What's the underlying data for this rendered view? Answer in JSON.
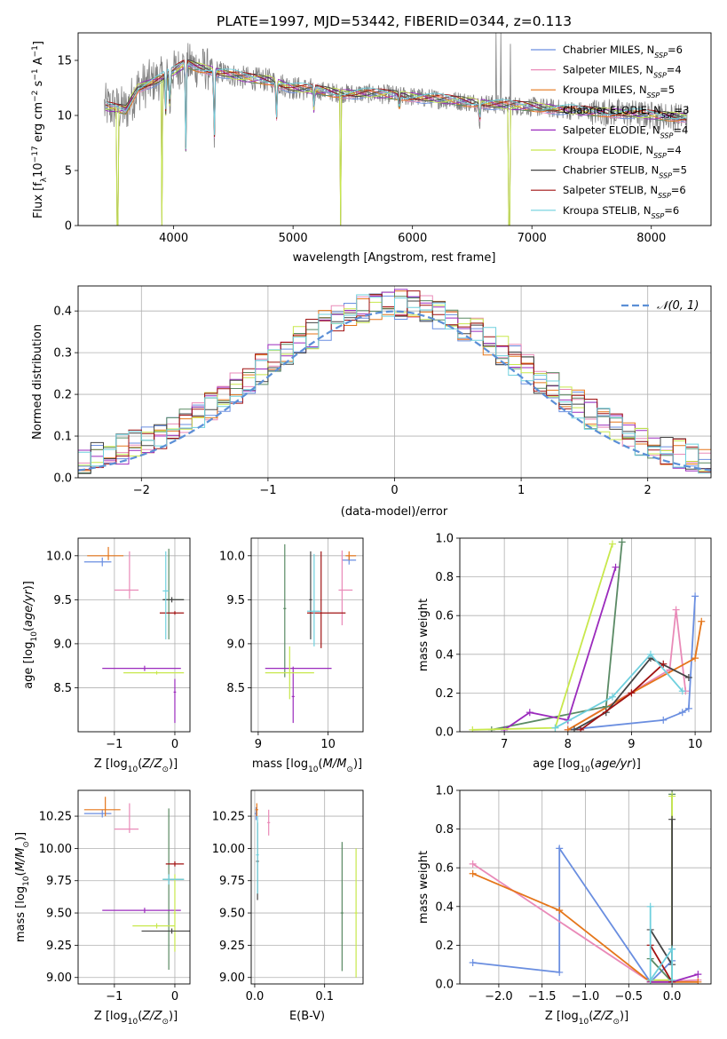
{
  "colors": {
    "series": [
      "#6a8ee0",
      "#e98ab8",
      "#e5761a",
      "#5a8a64",
      "#9b2bbd",
      "#c8e84c",
      "#444444",
      "#a01212",
      "#6fd0de"
    ],
    "grid": "#b0b0b0",
    "data_line": "#808080",
    "gaussian": "#5b8fd6"
  },
  "chart_data": [
    {
      "id": "spectrum",
      "type": "line",
      "title": "PLATE=1997, MJD=53442, FIBERID=0344, z=0.113",
      "xlabel": "wavelength [Angstrom, rest frame]",
      "ylabel": "Flux [fλ10⁻¹⁷ erg cm⁻² s⁻¹ A⁻¹]",
      "xlim": [
        3200,
        8500
      ],
      "ylim": [
        0,
        17.5
      ],
      "xticks": [
        4000,
        5000,
        6000,
        7000,
        8000
      ],
      "yticks": [
        0,
        5,
        10,
        15
      ],
      "grid": false,
      "legend_position": "top-right",
      "legend": [
        "Chabrier MILES, N_SSP=6",
        "Salpeter MILES, N_SSP=4",
        "Kroupa MILES, N_SSP=5",
        "Chabrier ELODIE, N_SSP=3",
        "Salpeter ELODIE, N_SSP=4",
        "Kroupa ELODIE, N_SSP=4",
        "Chabrier STELIB, N_SSP=5",
        "Salpeter STELIB, N_SSP=6",
        "Kroupa STELIB, N_SSP=6"
      ],
      "data_range": [
        3420,
        8310
      ],
      "continuum": [
        [
          3420,
          10.8
        ],
        [
          3600,
          10.5
        ],
        [
          3700,
          12.5
        ],
        [
          3900,
          13.4
        ],
        [
          4000,
          14.0
        ],
        [
          4100,
          14.7
        ],
        [
          4200,
          14.4
        ],
        [
          4400,
          13.9
        ],
        [
          4600,
          13.4
        ],
        [
          4800,
          13.2
        ],
        [
          5000,
          12.5
        ],
        [
          5200,
          12.3
        ],
        [
          5400,
          12.0
        ],
        [
          5600,
          12.0
        ],
        [
          5800,
          11.9
        ],
        [
          6000,
          11.7
        ],
        [
          6200,
          11.5
        ],
        [
          6400,
          11.3
        ],
        [
          6600,
          11.1
        ],
        [
          6800,
          10.9
        ],
        [
          7000,
          10.8
        ],
        [
          7200,
          10.6
        ],
        [
          7400,
          10.4
        ],
        [
          7600,
          10.3
        ],
        [
          7800,
          10.2
        ],
        [
          8000,
          10.0
        ],
        [
          8200,
          9.9
        ],
        [
          8310,
          9.8
        ]
      ],
      "absorption": [
        [
          3934,
          10.2
        ],
        [
          3969,
          10.3
        ],
        [
          4102,
          6.9
        ],
        [
          4340,
          7.5
        ],
        [
          4861,
          9.8
        ],
        [
          5175,
          10.5
        ],
        [
          5890,
          10.6
        ],
        [
          6563,
          9.5
        ]
      ],
      "drops_to_zero": [
        3530,
        3905,
        5395,
        6810
      ],
      "spikes": [
        [
          6700,
          17.5
        ],
        [
          6740,
          17.5
        ],
        [
          6820,
          16.5
        ]
      ]
    },
    {
      "id": "residuals",
      "type": "histogram",
      "xlabel": "(data-model)/error",
      "ylabel": "Normed distribution",
      "xlim": [
        -2.5,
        2.5
      ],
      "ylim": [
        0,
        0.46
      ],
      "xticks": [
        -2,
        -1,
        0,
        1,
        2
      ],
      "yticks": [
        0.0,
        0.1,
        0.2,
        0.3,
        0.4
      ],
      "grid": true,
      "legend_position": "top-right",
      "legend": [
        "𝒩(0, 1)"
      ],
      "bins": 50
    },
    {
      "id": "age-vs-Z",
      "type": "errorbar",
      "xlabel": "Z [log10(Z/Z⊙)]",
      "ylabel": "age  [log10(age/yr)]",
      "xlim": [
        -1.6,
        0.25
      ],
      "ylim": [
        8.0,
        10.2
      ],
      "xticks": [
        -1,
        0
      ],
      "yticks": [
        8.5,
        9.0,
        9.5,
        10.0
      ],
      "grid": true,
      "points": [
        {
          "s": 0,
          "x": -1.2,
          "y": 9.93,
          "xerr": [
            0.3,
            0.15
          ],
          "yerr": [
            0.05,
            0.05
          ]
        },
        {
          "s": 1,
          "x": -0.75,
          "y": 9.61,
          "xerr": [
            0.25,
            0.15
          ],
          "yerr": [
            0.1,
            0.44
          ]
        },
        {
          "s": 2,
          "x": -1.1,
          "y": 10.0,
          "xerr": [
            0.35,
            0.25
          ],
          "yerr": [
            0.05,
            0.1
          ]
        },
        {
          "s": 3,
          "x": -0.1,
          "y": 9.5,
          "xerr": [
            0.1,
            0.25
          ],
          "yerr": [
            0.45,
            0.58
          ]
        },
        {
          "s": 4,
          "x": -0.5,
          "y": 8.72,
          "xerr": [
            0.7,
            0.6
          ],
          "yerr": [
            0.03,
            0.03
          ]
        },
        {
          "s": 4,
          "x": 0.0,
          "y": 8.45,
          "xerr": [
            0.02,
            0.02
          ],
          "yerr": [
            0.35,
            0.15
          ]
        },
        {
          "s": 5,
          "x": -0.3,
          "y": 8.67,
          "xerr": [
            0.55,
            0.45
          ],
          "yerr": [
            0.02,
            0.02
          ]
        },
        {
          "s": 6,
          "x": -0.05,
          "y": 9.5,
          "xerr": [
            0.15,
            0.2
          ],
          "yerr": [
            0.03,
            0.03
          ]
        },
        {
          "s": 7,
          "x": 0.0,
          "y": 9.35,
          "xerr": [
            0.25,
            0.15
          ],
          "yerr": [
            0.02,
            0.02
          ]
        },
        {
          "s": 8,
          "x": -0.15,
          "y": 9.6,
          "xerr": [
            0.05,
            0.05
          ],
          "yerr": [
            0.55,
            0.45
          ]
        }
      ]
    },
    {
      "id": "age-vs-mass",
      "type": "errorbar",
      "xlabel": "mass [log10(M/M⊙)]",
      "ylabel": "",
      "xlim": [
        8.9,
        10.5
      ],
      "ylim": [
        8.0,
        10.2
      ],
      "xticks": [
        9,
        10
      ],
      "yticks": [
        8.5,
        9.0,
        9.5,
        10.0
      ],
      "grid": true,
      "points": [
        {
          "s": 0,
          "x": 10.3,
          "y": 9.95,
          "xerr": [
            0.1,
            0.1
          ],
          "yerr": [
            0.05,
            0.05
          ]
        },
        {
          "s": 1,
          "x": 10.2,
          "y": 9.61,
          "xerr": [
            0.05,
            0.15
          ],
          "yerr": [
            0.4,
            0.45
          ]
        },
        {
          "s": 2,
          "x": 10.3,
          "y": 10.0,
          "xerr": [
            0.05,
            0.1
          ],
          "yerr": [
            0.05,
            0.05
          ]
        },
        {
          "s": 3,
          "x": 9.38,
          "y": 9.4,
          "xerr": [
            0.02,
            0.02
          ],
          "yerr": [
            0.78,
            0.73
          ]
        },
        {
          "s": 4,
          "x": 9.5,
          "y": 8.72,
          "xerr": [
            0.4,
            0.55
          ],
          "yerr": [
            0.02,
            0.02
          ]
        },
        {
          "s": 4,
          "x": 9.5,
          "y": 8.4,
          "xerr": [
            0.02,
            0.02
          ],
          "yerr": [
            0.3,
            0.3
          ]
        },
        {
          "s": 5,
          "x": 9.45,
          "y": 8.67,
          "xerr": [
            0.35,
            0.35
          ],
          "yerr": [
            0.3,
            0.3
          ]
        },
        {
          "s": 6,
          "x": 9.75,
          "y": 9.5,
          "xerr": [
            0.02,
            0.02
          ],
          "yerr": [
            0.45,
            0.55
          ]
        },
        {
          "s": 7,
          "x": 9.9,
          "y": 9.35,
          "xerr": [
            0.2,
            0.35
          ],
          "yerr": [
            0.4,
            0.7
          ]
        },
        {
          "s": 8,
          "x": 9.8,
          "y": 9.37,
          "xerr": [
            0.1,
            0.1
          ],
          "yerr": [
            0.4,
            0.65
          ]
        }
      ]
    },
    {
      "id": "weight-vs-age",
      "type": "line",
      "xlabel": "age  [log10(age/yr)]",
      "ylabel": "mass weight",
      "xlim": [
        6.3,
        10.25
      ],
      "ylim": [
        0.0,
        1.0
      ],
      "xticks": [
        7,
        8,
        9,
        10
      ],
      "yticks": [
        0.0,
        0.2,
        0.4,
        0.6,
        0.8,
        1.0
      ],
      "grid": true,
      "series": [
        {
          "s": 0,
          "x": [
            8.0,
            9.5,
            9.8,
            9.9,
            10.0
          ],
          "y": [
            0.01,
            0.06,
            0.1,
            0.12,
            0.7
          ]
        },
        {
          "s": 1,
          "x": [
            8.0,
            9.6,
            9.7,
            9.85
          ],
          "y": [
            0.01,
            0.32,
            0.63,
            0.21
          ]
        },
        {
          "s": 2,
          "x": [
            8.0,
            9.0,
            10.0,
            10.1
          ],
          "y": [
            0.01,
            0.2,
            0.38,
            0.57
          ]
        },
        {
          "s": 3,
          "x": [
            6.8,
            8.6,
            8.85
          ],
          "y": [
            0.01,
            0.13,
            0.98
          ]
        },
        {
          "s": 4,
          "x": [
            7.0,
            7.4,
            8.0,
            8.75
          ],
          "y": [
            0.01,
            0.1,
            0.06,
            0.85
          ]
        },
        {
          "s": 5,
          "x": [
            6.5,
            7.8,
            8.7
          ],
          "y": [
            0.01,
            0.02,
            0.97
          ]
        },
        {
          "s": 6,
          "x": [
            8.1,
            8.6,
            9.3,
            9.9
          ],
          "y": [
            0.01,
            0.1,
            0.38,
            0.28
          ]
        },
        {
          "s": 7,
          "x": [
            8.2,
            9.0,
            9.5
          ],
          "y": [
            0.01,
            0.2,
            0.35
          ]
        },
        {
          "s": 8,
          "x": [
            7.8,
            8.7,
            9.3,
            9.8
          ],
          "y": [
            0.02,
            0.18,
            0.4,
            0.21
          ]
        }
      ]
    },
    {
      "id": "mass-vs-Z",
      "type": "errorbar",
      "xlabel": "Z [log10(Z/Z⊙)]",
      "ylabel": "mass [log10(M/M⊙)]",
      "xlim": [
        -1.6,
        0.25
      ],
      "ylim": [
        8.95,
        10.45
      ],
      "xticks": [
        -1,
        0
      ],
      "yticks": [
        9.0,
        9.25,
        9.5,
        9.75,
        10.0,
        10.25
      ],
      "grid": true,
      "points": [
        {
          "s": 0,
          "x": -1.2,
          "y": 10.27,
          "xerr": [
            0.3,
            0.15
          ],
          "yerr": [
            0.03,
            0.03
          ]
        },
        {
          "s": 1,
          "x": -0.75,
          "y": 10.15,
          "xerr": [
            0.25,
            0.15
          ],
          "yerr": [
            0.03,
            0.2
          ]
        },
        {
          "s": 2,
          "x": -1.15,
          "y": 10.3,
          "xerr": [
            0.35,
            0.25
          ],
          "yerr": [
            0.05,
            0.1
          ]
        },
        {
          "s": 3,
          "x": -0.1,
          "y": 9.76,
          "xerr": [
            0.1,
            0.25
          ],
          "yerr": [
            0.7,
            0.55
          ]
        },
        {
          "s": 4,
          "x": -0.5,
          "y": 9.52,
          "xerr": [
            0.7,
            0.6
          ],
          "yerr": [
            0.02,
            0.02
          ]
        },
        {
          "s": 5,
          "x": -0.3,
          "y": 9.4,
          "xerr": [
            0.4,
            0.3
          ],
          "yerr": [
            0.02,
            0.02
          ]
        },
        {
          "s": 5,
          "x": 0.0,
          "y": 9.5,
          "xerr": [
            0.02,
            0.02
          ],
          "yerr": [
            0.3,
            0.3
          ]
        },
        {
          "s": 6,
          "x": -0.05,
          "y": 9.36,
          "xerr": [
            0.5,
            0.3
          ],
          "yerr": [
            0.02,
            0.02
          ]
        },
        {
          "s": 7,
          "x": 0.0,
          "y": 9.88,
          "xerr": [
            0.15,
            0.15
          ],
          "yerr": [
            0.02,
            0.02
          ]
        },
        {
          "s": 8,
          "x": -0.1,
          "y": 9.76,
          "xerr": [
            0.1,
            0.25
          ],
          "yerr": [
            0.04,
            0.04
          ]
        }
      ]
    },
    {
      "id": "mass-vs-EBV",
      "type": "errorbar",
      "xlabel": "E(B-V)",
      "ylabel": "",
      "xlim": [
        -0.005,
        0.155
      ],
      "ylim": [
        8.95,
        10.45
      ],
      "xticks": [
        0.0,
        0.1
      ],
      "yticks": [
        9.0,
        9.25,
        9.5,
        9.75,
        10.0,
        10.25
      ],
      "grid": true,
      "points": [
        {
          "s": 0,
          "x": 0.002,
          "y": 10.27,
          "xerr": [
            0.002,
            0.002
          ],
          "yerr": [
            0.05,
            0.05
          ]
        },
        {
          "s": 1,
          "x": 0.02,
          "y": 10.2,
          "xerr": [
            0.002,
            0.002
          ],
          "yerr": [
            0.1,
            0.1
          ]
        },
        {
          "s": 2,
          "x": 0.003,
          "y": 10.3,
          "xerr": [
            0.002,
            0.002
          ],
          "yerr": [
            0.05,
            0.05
          ]
        },
        {
          "s": 3,
          "x": 0.125,
          "y": 9.5,
          "xerr": [
            0.002,
            0.002
          ],
          "yerr": [
            0.45,
            0.55
          ]
        },
        {
          "s": 5,
          "x": 0.145,
          "y": 9.5,
          "xerr": [
            0.002,
            0.002
          ],
          "yerr": [
            0.5,
            0.5
          ]
        },
        {
          "s": 6,
          "x": 0.004,
          "y": 9.9,
          "xerr": [
            0.002,
            0.002
          ],
          "yerr": [
            0.3,
            0.3
          ]
        },
        {
          "s": 8,
          "x": 0.004,
          "y": 9.95,
          "xerr": [
            0.002,
            0.002
          ],
          "yerr": [
            0.3,
            0.3
          ]
        }
      ]
    },
    {
      "id": "weight-vs-Z",
      "type": "line",
      "xlabel": "Z [log10(Z/Z⊙)]",
      "ylabel": "mass weight",
      "xlim": [
        -2.45,
        0.45
      ],
      "ylim": [
        0.0,
        1.0
      ],
      "xticks": [
        -2.0,
        -1.5,
        -1.0,
        -0.5,
        0.0
      ],
      "yticks": [
        0.0,
        0.2,
        0.4,
        0.6,
        0.8,
        1.0
      ],
      "grid": true,
      "series": [
        {
          "s": 0,
          "x": [
            -2.3,
            -1.3,
            -1.3,
            -0.25,
            0.0,
            0.0
          ],
          "y": [
            0.11,
            0.06,
            0.7,
            0.01,
            0.12,
            0.18
          ]
        },
        {
          "s": 1,
          "x": [
            -2.3,
            -0.25,
            0.3
          ],
          "y": [
            0.62,
            0.01,
            0.02
          ]
        },
        {
          "s": 2,
          "x": [
            -2.3,
            -1.3,
            -0.25,
            0.3
          ],
          "y": [
            0.57,
            0.38,
            0.01,
            0.01
          ]
        },
        {
          "s": 3,
          "x": [
            -0.25,
            0.0,
            0.0
          ],
          "y": [
            0.13,
            0.01,
            0.98
          ]
        },
        {
          "s": 4,
          "x": [
            -0.25,
            0.0,
            0.3
          ],
          "y": [
            0.01,
            0.01,
            0.05
          ]
        },
        {
          "s": 5,
          "x": [
            -0.25,
            0.0,
            0.0
          ],
          "y": [
            0.02,
            0.02,
            0.97
          ]
        },
        {
          "s": 6,
          "x": [
            -0.25,
            0.0,
            0.0
          ],
          "y": [
            0.28,
            0.1,
            0.85
          ]
        },
        {
          "s": 7,
          "x": [
            -0.25,
            0.0
          ],
          "y": [
            0.2,
            0.01
          ]
        },
        {
          "s": 8,
          "x": [
            -0.25,
            -0.25,
            0.0,
            0.0
          ],
          "y": [
            0.4,
            0.02,
            0.18,
            0.02
          ]
        }
      ]
    }
  ]
}
